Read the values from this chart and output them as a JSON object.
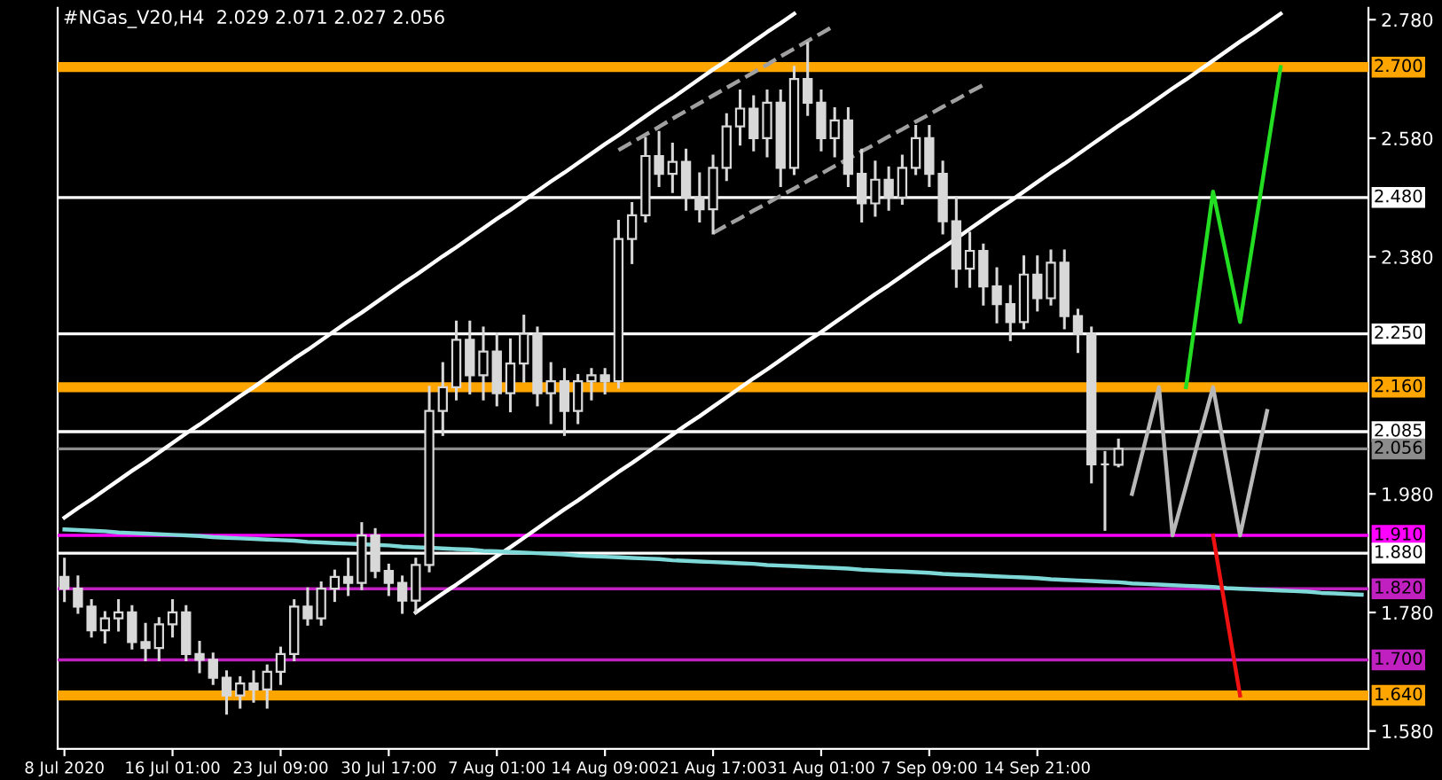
{
  "chart_data": {
    "type": "candlestick",
    "title": "#NGas_V20,H4  2.029 2.071 2.027 2.056",
    "categories": [
      "8 Jul 2020",
      null,
      null,
      null,
      null,
      null,
      null,
      null,
      "16 Jul 01:00",
      null,
      null,
      null,
      null,
      null,
      null,
      null,
      "23 Jul 09:00",
      null,
      null,
      null,
      null,
      null,
      null,
      null,
      "30 Jul 17:00",
      null,
      null,
      null,
      null,
      null,
      null,
      null,
      "7 Aug 01:00",
      null,
      null,
      null,
      null,
      null,
      null,
      null,
      "14 Aug 09:00",
      null,
      null,
      null,
      null,
      null,
      null,
      null,
      "21 Aug 17:00",
      null,
      null,
      null,
      null,
      null,
      null,
      null,
      "31 Aug 01:00",
      null,
      null,
      null,
      null,
      null,
      null,
      null,
      "7 Sep 09:00",
      null,
      null,
      null,
      null,
      null,
      null,
      null,
      "14 Sep 21:00",
      null,
      null,
      null,
      null,
      null,
      null,
      null,
      null,
      null,
      null,
      null,
      null,
      null,
      null,
      null,
      null,
      null,
      null,
      null,
      null,
      null,
      null,
      null,
      null
    ],
    "ylim": [
      1.55,
      2.8
    ],
    "yticks": [
      {
        "value": 1.58,
        "label": "1.580"
      },
      {
        "value": 1.78,
        "label": "1.780"
      },
      {
        "value": 1.98,
        "label": "1.980"
      },
      {
        "value": 2.38,
        "label": "2.380"
      },
      {
        "value": 2.58,
        "label": "2.580"
      },
      {
        "value": 2.78,
        "label": "2.780"
      }
    ],
    "series": [
      {
        "type": "candlestick",
        "color": "#d8d8d8",
        "ohlc": [
          [
            1.84,
            1.87,
            1.8,
            1.82
          ],
          [
            1.82,
            1.84,
            1.78,
            1.79
          ],
          [
            1.79,
            1.8,
            1.74,
            1.75
          ],
          [
            1.75,
            1.78,
            1.73,
            1.77
          ],
          [
            1.77,
            1.8,
            1.75,
            1.78
          ],
          [
            1.78,
            1.79,
            1.72,
            1.73
          ],
          [
            1.73,
            1.76,
            1.7,
            1.72
          ],
          [
            1.72,
            1.77,
            1.7,
            1.76
          ],
          [
            1.76,
            1.8,
            1.74,
            1.78
          ],
          [
            1.78,
            1.79,
            1.7,
            1.71
          ],
          [
            1.71,
            1.73,
            1.68,
            1.7
          ],
          [
            1.7,
            1.71,
            1.66,
            1.67
          ],
          [
            1.67,
            1.68,
            1.61,
            1.64
          ],
          [
            1.64,
            1.67,
            1.62,
            1.66
          ],
          [
            1.66,
            1.68,
            1.63,
            1.65
          ],
          [
            1.65,
            1.69,
            1.62,
            1.68
          ],
          [
            1.68,
            1.72,
            1.66,
            1.71
          ],
          [
            1.71,
            1.8,
            1.7,
            1.79
          ],
          [
            1.79,
            1.82,
            1.76,
            1.77
          ],
          [
            1.77,
            1.83,
            1.76,
            1.82
          ],
          [
            1.82,
            1.85,
            1.8,
            1.84
          ],
          [
            1.84,
            1.87,
            1.81,
            1.83
          ],
          [
            1.83,
            1.93,
            1.82,
            1.91
          ],
          [
            1.91,
            1.92,
            1.84,
            1.85
          ],
          [
            1.85,
            1.86,
            1.81,
            1.83
          ],
          [
            1.83,
            1.84,
            1.78,
            1.8
          ],
          [
            1.8,
            1.87,
            1.78,
            1.86
          ],
          [
            1.86,
            2.16,
            1.85,
            2.12
          ],
          [
            2.12,
            2.2,
            2.08,
            2.16
          ],
          [
            2.16,
            2.27,
            2.14,
            2.24
          ],
          [
            2.24,
            2.27,
            2.15,
            2.18
          ],
          [
            2.18,
            2.26,
            2.14,
            2.22
          ],
          [
            2.22,
            2.25,
            2.13,
            2.15
          ],
          [
            2.15,
            2.24,
            2.12,
            2.2
          ],
          [
            2.2,
            2.28,
            2.17,
            2.25
          ],
          [
            2.25,
            2.26,
            2.13,
            2.15
          ],
          [
            2.15,
            2.2,
            2.1,
            2.17
          ],
          [
            2.17,
            2.19,
            2.08,
            2.12
          ],
          [
            2.12,
            2.18,
            2.1,
            2.17
          ],
          [
            2.17,
            2.19,
            2.14,
            2.18
          ],
          [
            2.18,
            2.19,
            2.15,
            2.17
          ],
          [
            2.17,
            2.44,
            2.16,
            2.41
          ],
          [
            2.41,
            2.47,
            2.37,
            2.45
          ],
          [
            2.45,
            2.58,
            2.44,
            2.55
          ],
          [
            2.55,
            2.59,
            2.5,
            2.52
          ],
          [
            2.52,
            2.57,
            2.49,
            2.54
          ],
          [
            2.54,
            2.56,
            2.46,
            2.48
          ],
          [
            2.48,
            2.52,
            2.44,
            2.46
          ],
          [
            2.46,
            2.55,
            2.42,
            2.53
          ],
          [
            2.53,
            2.62,
            2.51,
            2.6
          ],
          [
            2.6,
            2.66,
            2.57,
            2.63
          ],
          [
            2.63,
            2.65,
            2.56,
            2.58
          ],
          [
            2.58,
            2.66,
            2.55,
            2.64
          ],
          [
            2.64,
            2.66,
            2.5,
            2.53
          ],
          [
            2.53,
            2.7,
            2.52,
            2.68
          ],
          [
            2.68,
            2.74,
            2.62,
            2.64
          ],
          [
            2.64,
            2.66,
            2.56,
            2.58
          ],
          [
            2.58,
            2.63,
            2.55,
            2.61
          ],
          [
            2.61,
            2.63,
            2.5,
            2.52
          ],
          [
            2.52,
            2.56,
            2.44,
            2.47
          ],
          [
            2.47,
            2.54,
            2.45,
            2.51
          ],
          [
            2.51,
            2.53,
            2.46,
            2.48
          ],
          [
            2.48,
            2.55,
            2.47,
            2.53
          ],
          [
            2.53,
            2.6,
            2.52,
            2.58
          ],
          [
            2.58,
            2.6,
            2.5,
            2.52
          ],
          [
            2.52,
            2.54,
            2.42,
            2.44
          ],
          [
            2.44,
            2.48,
            2.33,
            2.36
          ],
          [
            2.36,
            2.42,
            2.33,
            2.39
          ],
          [
            2.39,
            2.4,
            2.3,
            2.33
          ],
          [
            2.33,
            2.36,
            2.27,
            2.3
          ],
          [
            2.3,
            2.33,
            2.24,
            2.27
          ],
          [
            2.27,
            2.38,
            2.26,
            2.35
          ],
          [
            2.35,
            2.38,
            2.29,
            2.31
          ],
          [
            2.31,
            2.39,
            2.3,
            2.37
          ],
          [
            2.37,
            2.39,
            2.26,
            2.28
          ],
          [
            2.28,
            2.29,
            2.22,
            2.25
          ],
          [
            2.25,
            2.26,
            2.0,
            2.03
          ],
          [
            2.03,
            2.05,
            1.92,
            2.03
          ],
          [
            2.029,
            2.071,
            2.027,
            2.056
          ],
          null,
          null,
          null,
          null,
          null,
          null,
          null,
          null,
          null,
          null,
          null,
          null,
          null,
          null,
          null,
          null,
          null,
          null
        ]
      },
      {
        "type": "line",
        "color": "#ffffff",
        "line_style": "solid",
        "values": [
          1.94,
          1.956,
          1.971,
          1.987,
          2.003,
          2.019,
          2.034,
          2.05,
          2.066,
          2.082,
          2.097,
          2.113,
          2.129,
          2.145,
          2.16,
          2.176,
          2.192,
          2.208,
          2.223,
          2.239,
          2.255,
          2.271,
          2.286,
          2.302,
          2.318,
          2.334,
          2.349,
          2.365,
          2.381,
          2.396,
          2.412,
          2.428,
          2.444,
          2.459,
          2.475,
          2.491,
          2.507,
          2.522,
          2.538,
          2.554,
          2.57,
          2.585,
          2.601,
          2.617,
          2.633,
          2.648,
          2.664,
          2.68,
          2.696,
          2.711,
          2.727,
          2.743,
          2.759,
          2.774,
          2.79,
          null,
          null,
          null,
          null,
          null,
          null,
          null,
          null,
          null,
          null,
          null,
          null,
          null,
          null,
          null,
          null,
          null,
          null,
          null,
          null,
          null,
          null,
          null,
          null,
          null,
          null,
          null,
          null,
          null,
          null,
          null,
          null,
          null,
          null,
          null,
          null,
          null,
          null,
          null,
          null,
          null,
          null
        ]
      },
      {
        "type": "line",
        "color": "#ffffff",
        "line_style": "solid",
        "values": [
          null,
          null,
          null,
          null,
          null,
          null,
          null,
          null,
          null,
          null,
          null,
          null,
          null,
          null,
          null,
          null,
          null,
          null,
          null,
          null,
          null,
          null,
          null,
          null,
          null,
          null,
          1.78,
          1.796,
          1.812,
          1.827,
          1.843,
          1.859,
          1.875,
          1.89,
          1.906,
          1.922,
          1.938,
          1.954,
          1.969,
          1.985,
          2.001,
          2.017,
          2.032,
          2.048,
          2.064,
          2.08,
          2.096,
          2.111,
          2.127,
          2.143,
          2.159,
          2.175,
          2.19,
          2.206,
          2.222,
          2.238,
          2.253,
          2.269,
          2.285,
          2.301,
          2.317,
          2.332,
          2.348,
          2.364,
          2.38,
          2.395,
          2.411,
          2.427,
          2.443,
          2.459,
          2.474,
          2.49,
          2.506,
          2.522,
          2.537,
          2.553,
          2.569,
          2.585,
          2.601,
          2.616,
          2.632,
          2.648,
          2.664,
          2.679,
          2.695,
          2.711,
          2.727,
          2.743,
          2.758,
          2.774,
          2.79,
          null,
          null,
          null,
          null,
          null,
          null
        ]
      },
      {
        "type": "line",
        "color": "#a0a0a0",
        "line_style": "dashed",
        "values": [
          null,
          null,
          null,
          null,
          null,
          null,
          null,
          null,
          null,
          null,
          null,
          null,
          null,
          null,
          null,
          null,
          null,
          null,
          null,
          null,
          null,
          null,
          null,
          null,
          null,
          null,
          null,
          null,
          null,
          null,
          null,
          null,
          null,
          null,
          null,
          null,
          null,
          null,
          null,
          null,
          null,
          2.56,
          2.573,
          2.586,
          2.599,
          2.613,
          2.626,
          2.639,
          2.652,
          2.665,
          2.678,
          2.691,
          2.704,
          2.718,
          2.731,
          2.744,
          2.757,
          2.77,
          null,
          null,
          null,
          null,
          null,
          null,
          null,
          null,
          null,
          null,
          null,
          null,
          null,
          null,
          null,
          null,
          null,
          null,
          null,
          null,
          null,
          null,
          null,
          null,
          null,
          null,
          null,
          null,
          null,
          null,
          null,
          null,
          null,
          null,
          null,
          null,
          null,
          null,
          null
        ]
      },
      {
        "type": "line",
        "color": "#a0a0a0",
        "line_style": "dashed",
        "values": [
          null,
          null,
          null,
          null,
          null,
          null,
          null,
          null,
          null,
          null,
          null,
          null,
          null,
          null,
          null,
          null,
          null,
          null,
          null,
          null,
          null,
          null,
          null,
          null,
          null,
          null,
          null,
          null,
          null,
          null,
          null,
          null,
          null,
          null,
          null,
          null,
          null,
          null,
          null,
          null,
          null,
          null,
          null,
          null,
          null,
          null,
          null,
          null,
          2.42,
          2.433,
          2.445,
          2.458,
          2.47,
          2.483,
          2.495,
          2.508,
          2.52,
          2.533,
          2.545,
          2.558,
          2.57,
          2.583,
          2.595,
          2.608,
          2.62,
          2.633,
          2.645,
          2.658,
          2.67,
          null,
          null,
          null,
          null,
          null,
          null,
          null,
          null,
          null,
          null,
          null,
          null,
          null,
          null,
          null,
          null,
          null,
          null,
          null,
          null,
          null,
          null,
          null,
          null,
          null,
          null,
          null,
          null
        ]
      },
      {
        "type": "line",
        "color": "#7fd8d8",
        "line_style": "solid",
        "values": [
          1.92,
          1.919,
          1.918,
          1.917,
          1.915,
          1.914,
          1.913,
          1.912,
          1.911,
          1.91,
          1.909,
          1.907,
          1.906,
          1.905,
          1.904,
          1.903,
          1.902,
          1.901,
          1.899,
          1.898,
          1.897,
          1.896,
          1.895,
          1.894,
          1.893,
          1.891,
          1.89,
          1.889,
          1.888,
          1.887,
          1.886,
          1.884,
          1.883,
          1.882,
          1.881,
          1.88,
          1.879,
          1.878,
          1.876,
          1.875,
          1.874,
          1.873,
          1.872,
          1.871,
          1.87,
          1.868,
          1.867,
          1.866,
          1.865,
          1.864,
          1.863,
          1.862,
          1.86,
          1.859,
          1.858,
          1.857,
          1.856,
          1.855,
          1.854,
          1.852,
          1.851,
          1.85,
          1.849,
          1.848,
          1.847,
          1.845,
          1.844,
          1.843,
          1.842,
          1.841,
          1.84,
          1.839,
          1.838,
          1.836,
          1.835,
          1.834,
          1.833,
          1.832,
          1.831,
          1.829,
          1.828,
          1.827,
          1.826,
          1.825,
          1.824,
          1.823,
          1.821,
          1.82,
          1.819,
          1.818,
          1.817,
          1.816,
          1.815,
          1.813,
          1.812,
          1.811,
          1.81
        ]
      },
      {
        "type": "line",
        "color": "#b8b8b8",
        "line_style": "solid",
        "values": [
          null,
          null,
          null,
          null,
          null,
          null,
          null,
          null,
          null,
          null,
          null,
          null,
          null,
          null,
          null,
          null,
          null,
          null,
          null,
          null,
          null,
          null,
          null,
          null,
          null,
          null,
          null,
          null,
          null,
          null,
          null,
          null,
          null,
          null,
          null,
          null,
          null,
          null,
          null,
          null,
          null,
          null,
          null,
          null,
          null,
          null,
          null,
          null,
          null,
          null,
          null,
          null,
          null,
          null,
          null,
          null,
          null,
          null,
          null,
          null,
          null,
          null,
          null,
          null,
          null,
          null,
          null,
          null,
          null,
          null,
          null,
          null,
          null,
          null,
          null,
          null,
          null,
          null,
          null,
          1.98,
          2.07,
          2.16,
          1.91,
          1.993,
          2.077,
          2.16,
          2.035,
          1.91,
          2.015,
          2.12,
          null,
          null,
          null,
          null,
          null,
          null,
          null
        ]
      },
      {
        "type": "line",
        "color": "#22dd22",
        "line_style": "solid",
        "values": [
          null,
          null,
          null,
          null,
          null,
          null,
          null,
          null,
          null,
          null,
          null,
          null,
          null,
          null,
          null,
          null,
          null,
          null,
          null,
          null,
          null,
          null,
          null,
          null,
          null,
          null,
          null,
          null,
          null,
          null,
          null,
          null,
          null,
          null,
          null,
          null,
          null,
          null,
          null,
          null,
          null,
          null,
          null,
          null,
          null,
          null,
          null,
          null,
          null,
          null,
          null,
          null,
          null,
          null,
          null,
          null,
          null,
          null,
          null,
          null,
          null,
          null,
          null,
          null,
          null,
          null,
          null,
          null,
          null,
          null,
          null,
          null,
          null,
          null,
          null,
          null,
          null,
          null,
          null,
          null,
          null,
          null,
          null,
          2.16,
          2.325,
          2.49,
          2.38,
          2.27,
          2.413,
          2.557,
          2.7,
          null,
          null,
          null,
          null,
          null,
          null
        ]
      },
      {
        "type": "line",
        "color": "#ee1111",
        "line_style": "solid",
        "values": [
          null,
          null,
          null,
          null,
          null,
          null,
          null,
          null,
          null,
          null,
          null,
          null,
          null,
          null,
          null,
          null,
          null,
          null,
          null,
          null,
          null,
          null,
          null,
          null,
          null,
          null,
          null,
          null,
          null,
          null,
          null,
          null,
          null,
          null,
          null,
          null,
          null,
          null,
          null,
          null,
          null,
          null,
          null,
          null,
          null,
          null,
          null,
          null,
          null,
          null,
          null,
          null,
          null,
          null,
          null,
          null,
          null,
          null,
          null,
          null,
          null,
          null,
          null,
          null,
          null,
          null,
          null,
          null,
          null,
          null,
          null,
          null,
          null,
          null,
          null,
          null,
          null,
          null,
          null,
          null,
          null,
          null,
          null,
          null,
          null,
          1.91,
          1.775,
          1.64,
          null,
          null,
          null,
          null,
          null,
          null,
          null,
          null,
          null
        ]
      }
    ],
    "ref_lines": [
      {
        "axis": "y",
        "value": 2.7,
        "label": "2.700",
        "color": "#ffa500"
      },
      {
        "axis": "y",
        "value": 2.48,
        "label": "2.480",
        "color": "#ffffff"
      },
      {
        "axis": "y",
        "value": 2.25,
        "label": "2.250",
        "color": "#ffffff"
      },
      {
        "axis": "y",
        "value": 2.16,
        "label": "2.160",
        "color": "#ffa500"
      },
      {
        "axis": "y",
        "value": 2.085,
        "label": "2.085",
        "color": "#ffffff"
      },
      {
        "axis": "y",
        "value": 2.056,
        "label": "2.056",
        "color": "#8c8c8c"
      },
      {
        "axis": "y",
        "value": 1.91,
        "label": "1.910",
        "color": "#ff00ff"
      },
      {
        "axis": "y",
        "value": 1.88,
        "label": "1.880",
        "color": "#ffffff"
      },
      {
        "axis": "y",
        "value": 1.82,
        "label": "1.820",
        "color": "#c020c0"
      },
      {
        "axis": "y",
        "value": 1.7,
        "label": "1.700",
        "color": "#c020c0"
      },
      {
        "axis": "y",
        "value": 1.64,
        "label": "1.640",
        "color": "#ffa500"
      }
    ],
    "grid": false,
    "legend": false
  }
}
